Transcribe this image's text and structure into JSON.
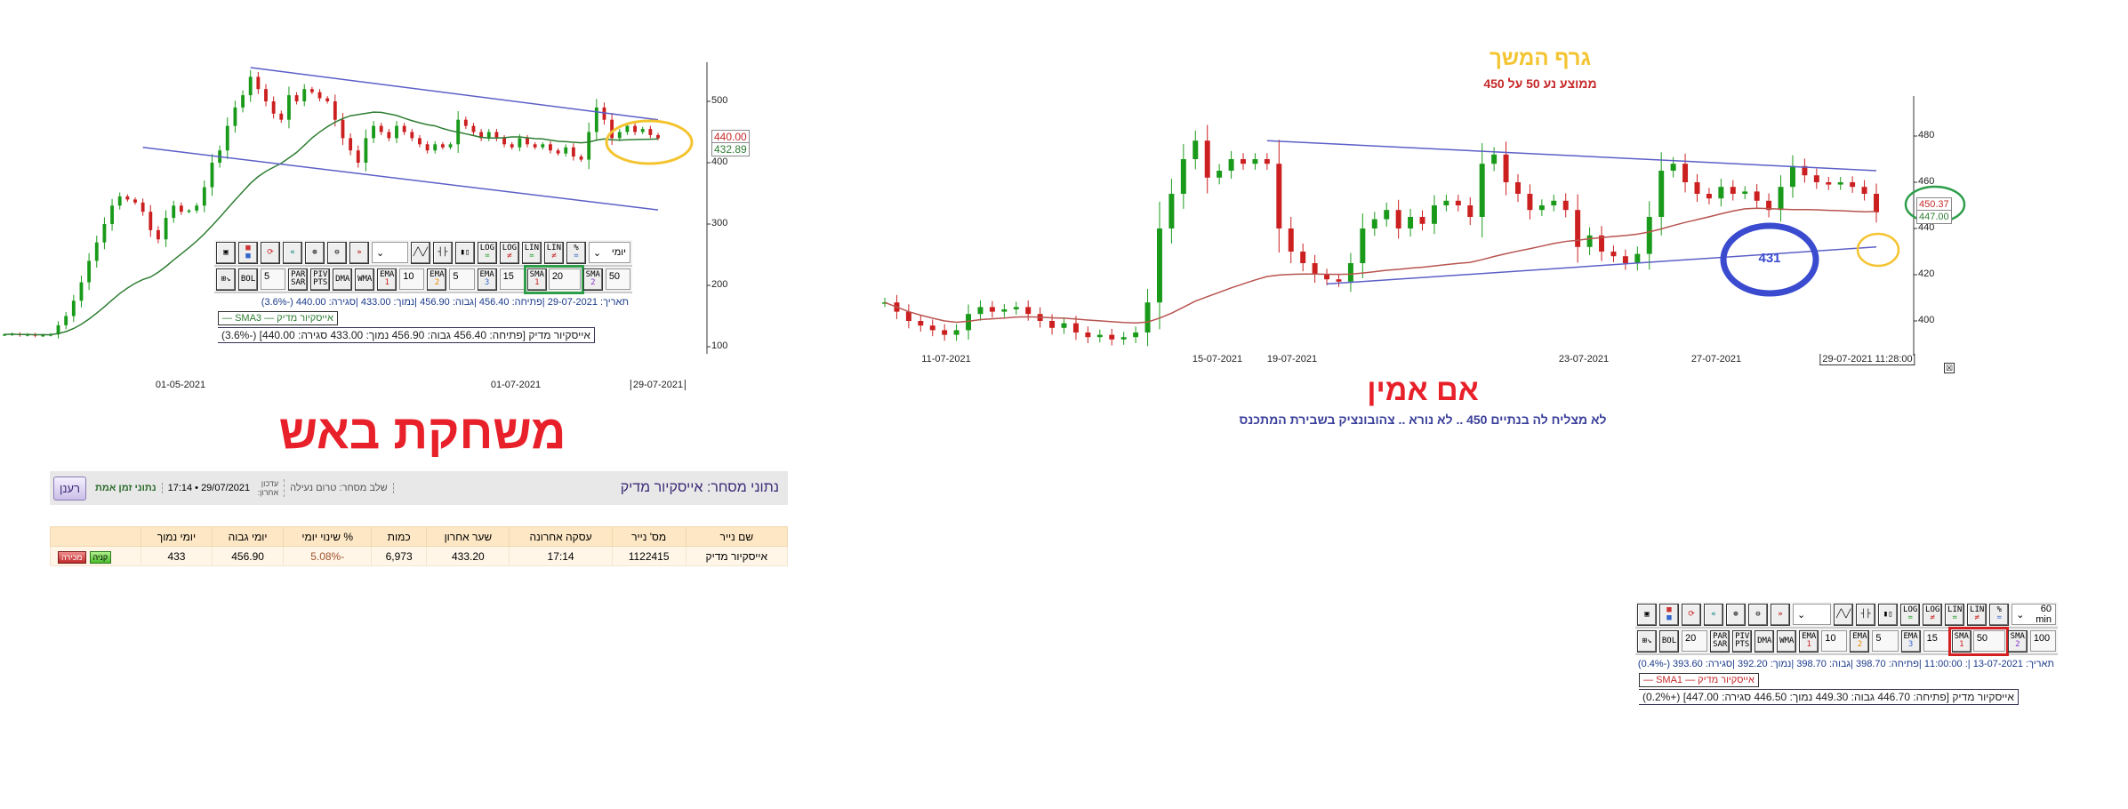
{
  "colors": {
    "up": "#1a9a1a",
    "down": "#cc1f1f",
    "trend": "#5b5fc7",
    "sma_left": "#2e7d32",
    "sma_right": "#b85450",
    "yellow": "#f4c430",
    "blue": "#3a4bd0",
    "green_ring": "#2e9e4a",
    "red_title": "#e8202a"
  },
  "left_chart": {
    "chart_data": {
      "type": "candlestick",
      "interval": "daily",
      "closes": [
        120,
        121,
        119,
        120,
        118,
        119,
        120,
        135,
        150,
        175,
        205,
        240,
        270,
        300,
        330,
        345,
        340,
        335,
        320,
        290,
        275,
        310,
        330,
        320,
        322,
        330,
        360,
        400,
        420,
        460,
        490,
        510,
        540,
        520,
        500,
        480,
        470,
        510,
        500,
        520,
        515,
        505,
        500,
        470,
        440,
        420,
        400,
        440,
        460,
        450,
        440,
        460,
        450,
        440,
        430,
        420,
        430,
        425,
        430,
        470,
        460,
        450,
        440,
        450,
        440,
        430,
        425,
        440,
        430,
        425,
        430,
        420,
        415,
        425,
        410,
        405,
        450,
        490,
        470,
        440,
        450,
        460,
        450,
        455,
        445,
        440
      ],
      "sma_window": 20,
      "yticks": [
        100,
        200,
        300,
        400,
        500
      ],
      "ylim": [
        70,
        560
      ],
      "xtick_labels": [
        "01-05-2021",
        "01-07-2021",
        "29-07-2021"
      ],
      "last_close": "440.00",
      "sma_last": "432.89",
      "trendlines": [
        {
          "from": [
            32,
            555
          ],
          "to": [
            85,
            470
          ]
        },
        {
          "from": [
            18,
            425
          ],
          "to": [
            85,
            323
          ]
        }
      ]
    },
    "toolbar": {
      "blank_select": "",
      "period": "יומי",
      "inputs": {
        "BOL": "5",
        "EMA1": "10",
        "EMA2": "5",
        "EMA3": "15",
        "SMA1": "20",
        "SMA2": "50"
      },
      "highlight": "#2e9e4a"
    },
    "info_line": "תאריך: 29-07-2021 |פתיחה: 456.40 |גבוה: 456.90 |נמוך: 433.00 |סגירה: 440.00 (-3.6%)",
    "legend": "אייסקיור מדיק — SMA3 —",
    "ohlc_line": "אייסקיור מדיק [פתיחה: 456.40  גבוה: 456.90  נמוך: 433.00  סגירה: 440.00] (-3.6%)"
  },
  "heading_left": "משחקת באש",
  "trading": {
    "title": "נתוני מסחר: אייסקיור מדיק",
    "phase": "שלב מסחר: טרום נעילה",
    "updated_label": "עדכון אחרון:",
    "updated_value": "17:14 • 29/07/2021",
    "realtime": "נתוני זמן אמת",
    "refresh": "רענן",
    "headers": [
      "שם נייר",
      "מס' נייר",
      "עסקה אחרונה",
      "שער אחרון",
      "כמות",
      "% שינוי יומי",
      "יומי גבוה",
      "יומי נמוך",
      ""
    ],
    "row": [
      "אייסקיור מדיק",
      "1122415",
      "17:14",
      "433.20",
      "6,973",
      "-5.08%",
      "456.90",
      "433"
    ],
    "buy": "קניה",
    "sell": "מכירה"
  },
  "right_chart": {
    "title": "גרף המשך",
    "subtitle": "ממוצע נע 50  על  450",
    "chart_data": {
      "type": "candlestick",
      "interval": "60 min",
      "closes": [
        408,
        404,
        400,
        398,
        396,
        394,
        396,
        403,
        406,
        404,
        405,
        406,
        403,
        400,
        397,
        399,
        395,
        393,
        394,
        392,
        393,
        395,
        408,
        440,
        455,
        470,
        478,
        462,
        465,
        470,
        468,
        470,
        468,
        440,
        430,
        425,
        420,
        418,
        417,
        425,
        440,
        444,
        448,
        440,
        445,
        442,
        450,
        452,
        450,
        445,
        468,
        472,
        460,
        455,
        448,
        450,
        452,
        448,
        432,
        437,
        430,
        428,
        425,
        429,
        445,
        465,
        468,
        460,
        455,
        453,
        458,
        455,
        456,
        452,
        448,
        458,
        467,
        463,
        460,
        459,
        460,
        458,
        455,
        447
      ],
      "sma_window": 50,
      "yticks": [
        400,
        420,
        440,
        460,
        480
      ],
      "ylim": [
        388,
        500
      ],
      "xtick_labels": [
        "11-07-2021",
        "15-07-2021",
        "19-07-2021",
        "23-07-2021",
        "27-07-2021",
        "29-07-2021 11:28:00"
      ],
      "last_close": "447.00",
      "sma_last": "450.37",
      "trendlines": [
        {
          "from": [
            32,
            478
          ],
          "to": [
            83,
            465
          ]
        },
        {
          "from": [
            37,
            416
          ],
          "to": [
            83,
            432
          ]
        }
      ],
      "annotation": "431"
    },
    "toolbar": {
      "blank_select": "",
      "period": "60 min",
      "inputs": {
        "BOL": "20",
        "EMA1": "10",
        "EMA2": "5",
        "EMA3": "15",
        "SMA1": "50",
        "SMA2": "100"
      },
      "highlight": "#d42020"
    },
    "info_line": "תאריך: 13-07-2021 |: 11:00:00 |פתיחה: 398.70 |גבוה: 398.70 |נמוך: 392.20 |סגירה: 393.60 (-0.4%)",
    "legend": "אייסקיור מדיק — SMA1 —",
    "ohlc_line": "אייסקיור מדיק [פתיחה: 446.70  גבוה: 449.30  נמוך: 446.50  סגירה: 447.00] (+0.2%)"
  },
  "heading_right": "אם אמין",
  "comment_right": "לא מצליח לה בנתיים  450  ..  לא נורא  ..  צהובונציק בשבירת המתכנס"
}
